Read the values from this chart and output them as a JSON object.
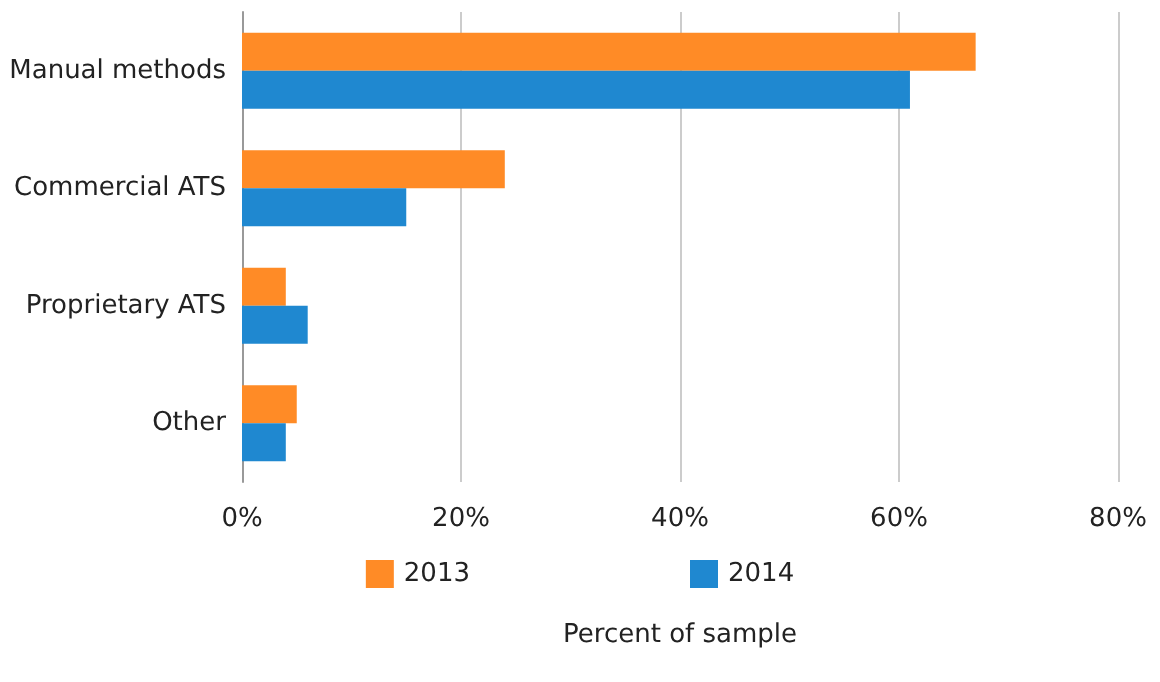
{
  "chart_data": {
    "type": "bar",
    "orientation": "horizontal",
    "xlabel": "Percent of sample",
    "categories": [
      "Manual methods",
      "Commercial ATS",
      "Proprietary ATS",
      "Other"
    ],
    "series": [
      {
        "name": "2013",
        "color": "#ff8b26",
        "values": [
          67,
          24,
          4,
          5
        ]
      },
      {
        "name": "2014",
        "color": "#1f88d0",
        "values": [
          61,
          15,
          6,
          4
        ]
      }
    ],
    "xlim": [
      0,
      80
    ],
    "xticks": [
      {
        "value": 0,
        "label": "0%"
      },
      {
        "value": 20,
        "label": "20%"
      },
      {
        "value": 40,
        "label": "40%"
      },
      {
        "value": 60,
        "label": "60%"
      },
      {
        "value": 80,
        "label": "80%"
      }
    ],
    "grid": "x",
    "legend": "bottom"
  }
}
